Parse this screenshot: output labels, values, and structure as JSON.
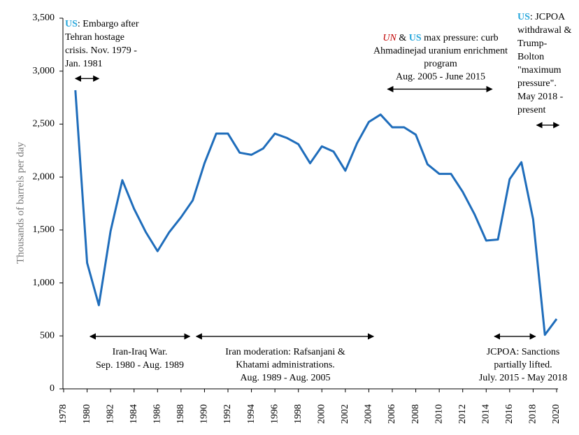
{
  "chart_data": {
    "type": "line",
    "y_label": "Thousands of barrels per day",
    "x": [
      1979,
      1980,
      1981,
      1982,
      1983,
      1984,
      1985,
      1986,
      1987,
      1988,
      1989,
      1990,
      1991,
      1992,
      1993,
      1994,
      1995,
      1996,
      1997,
      1998,
      1999,
      2000,
      2001,
      2002,
      2003,
      2004,
      2005,
      2006,
      2007,
      2008,
      2009,
      2010,
      2011,
      2012,
      2013,
      2014,
      2015,
      2016,
      2017,
      2018,
      2019,
      2020
    ],
    "series": [
      {
        "color": "#1f6dbb",
        "values": [
          2820,
          1190,
          790,
          1490,
          1970,
          1700,
          1480,
          1300,
          1480,
          1620,
          1780,
          2130,
          2410,
          2410,
          2230,
          2210,
          2270,
          2410,
          2370,
          2310,
          2130,
          2290,
          2240,
          2060,
          2320,
          2520,
          2590,
          2470,
          2470,
          2400,
          2120,
          2030,
          2030,
          1860,
          1650,
          1400,
          1410,
          1980,
          2140,
          1600,
          510,
          660
        ]
      }
    ],
    "xlim": [
      1978,
      2020
    ],
    "xticks": [
      1978,
      1980,
      1982,
      1984,
      1986,
      1988,
      1990,
      1992,
      1994,
      1996,
      1998,
      2000,
      2002,
      2004,
      2006,
      2008,
      2010,
      2012,
      2014,
      2016,
      2018,
      2020
    ],
    "ylim": [
      0,
      3500
    ],
    "yticks": [
      0,
      500,
      {
        "value": 1000,
        "label": "1,000"
      },
      {
        "value": 1500,
        "label": "1,500"
      },
      {
        "value": 2000,
        "label": "2,000"
      },
      {
        "value": 2500,
        "label": "2,500"
      },
      {
        "value": 3000,
        "label": "3,000"
      },
      {
        "value": 3500,
        "label": "3,500"
      }
    ],
    "annotations": [
      {
        "arrow": [
          1979,
          1981
        ],
        "arrow_y": 2930,
        "lines": [
          [
            {
              "text": "US",
              "color": "#29a8dc",
              "bold": true
            },
            {
              "text": ": Embargo after"
            }
          ],
          [
            {
              "text": "Tehran hostage"
            }
          ],
          [
            {
              "text": "crisis. Nov. 1979 -"
            }
          ],
          [
            {
              "text": "Jan. 1981"
            }
          ]
        ]
      },
      {
        "arrow": [
          2005.6,
          2014.5
        ],
        "arrow_y": 2830,
        "lines": [
          [
            {
              "text": "UN",
              "color": "#c00000",
              "italic": true
            },
            {
              "text": " & "
            },
            {
              "text": "US",
              "color": "#29a8dc",
              "bold": true
            },
            {
              "text": " max pressure: curb"
            }
          ],
          [
            {
              "text": "Ahmadinejad uranium enrichment"
            }
          ],
          [
            {
              "text": "program"
            }
          ],
          [
            {
              "text": "Aug. 2005 - June 2015"
            }
          ]
        ]
      },
      {
        "arrow": [
          2018.3,
          2020.2
        ],
        "arrow_y": 2490,
        "lines": [
          [
            {
              "text": "US",
              "color": "#29a8dc",
              "bold": true
            },
            {
              "text": ": JCPOA"
            }
          ],
          [
            {
              "text": "withdrawal &"
            }
          ],
          [
            {
              "text": "Trump-"
            }
          ],
          [
            {
              "text": "Bolton"
            }
          ],
          [
            {
              "text": "\"maximum"
            }
          ],
          [
            {
              "text": "pressure\"."
            }
          ],
          [
            {
              "text": "May 2018 -"
            }
          ],
          [
            {
              "text": "present"
            }
          ]
        ]
      },
      {
        "arrow": [
          1980.25,
          1988.75
        ],
        "arrow_y": 495,
        "lines": [
          [
            {
              "text": "Iran-Iraq War."
            }
          ],
          [
            {
              "text": "Sep. 1980 - Aug. 1989"
            }
          ]
        ]
      },
      {
        "arrow": [
          1989.3,
          2004.4
        ],
        "arrow_y": 495,
        "lines": [
          [
            {
              "text": "Iran moderation: Rafsanjani &"
            }
          ],
          [
            {
              "text": "Khatami administrations."
            }
          ],
          [
            {
              "text": "Aug. 1989 - Aug. 2005"
            }
          ]
        ]
      },
      {
        "arrow": [
          2014.7,
          2018.2
        ],
        "arrow_y": 495,
        "lines": [
          [
            {
              "text": "JCPOA: Sanctions"
            }
          ],
          [
            {
              "text": "partially lifted."
            }
          ],
          [
            {
              "text": "July. 2015 - May 2018"
            }
          ]
        ]
      }
    ]
  }
}
